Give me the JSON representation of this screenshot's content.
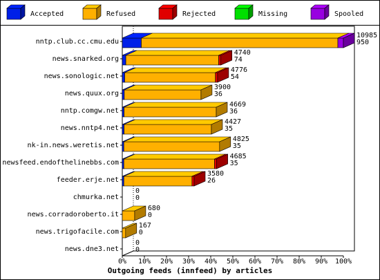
{
  "chart_data": {
    "type": "stacked-bar-3d",
    "title": "Outgoing feeds (innfeed) by articles",
    "categories": [
      "nntp.club.cc.cmu.edu",
      "news.snarked.org",
      "news.sonologic.net",
      "news.quux.org",
      "nntp.comgw.net",
      "news.nntp4.net",
      "nk-in.news.weretis.net",
      "newsfeed.endofthelinebbs.com",
      "feeder.erje.net",
      "chmurka.net",
      "news.corradoroberto.it",
      "news.trigofacile.com",
      "news.dne3.net"
    ],
    "series": [
      {
        "name": "Accepted",
        "color": "#0020e8",
        "values": [
          8.6,
          1.6,
          1.1,
          0.9,
          0.8,
          0.8,
          0.7,
          0.7,
          0.7,
          0,
          0,
          0,
          0
        ]
      },
      {
        "name": "Refused",
        "color": "#ffb000",
        "values": [
          88.9,
          42,
          41,
          34.7,
          41.7,
          39.5,
          43.3,
          41,
          30.8,
          0,
          5.6,
          1.5,
          0
        ]
      },
      {
        "name": "Rejected",
        "color": "#e00000",
        "values": [
          0,
          1,
          1,
          0,
          0,
          0,
          0,
          1,
          1,
          0,
          0,
          0,
          0
        ]
      },
      {
        "name": "Missing",
        "color": "#00e000",
        "values": [
          0,
          0,
          0,
          0,
          0,
          0,
          0,
          0,
          0,
          0,
          0,
          0,
          0
        ]
      },
      {
        "name": "Spooled",
        "color": "#9800e0",
        "values": [
          2.5,
          0,
          0,
          0,
          0,
          0,
          0,
          0,
          0,
          0,
          0,
          0,
          0
        ]
      }
    ],
    "offered_labels": [
      10985,
      4740,
      4776,
      3900,
      4669,
      4427,
      4825,
      4685,
      3580,
      0,
      680,
      167,
      0
    ],
    "accepted_labels": [
      950,
      74,
      54,
      36,
      36,
      35,
      35,
      35,
      26,
      0,
      0,
      0,
      0
    ],
    "xlim": [
      0,
      100
    ],
    "xticks": [
      {
        "value": 0,
        "label": "0%"
      },
      {
        "value": 10,
        "label": "10%"
      },
      {
        "value": 20,
        "label": "20%"
      },
      {
        "value": 30,
        "label": "30%"
      },
      {
        "value": 40,
        "label": "40%"
      },
      {
        "value": 50,
        "label": "50%"
      },
      {
        "value": 60,
        "label": "60%"
      },
      {
        "value": 70,
        "label": "70%"
      },
      {
        "value": 80,
        "label": "80%"
      },
      {
        "value": 90,
        "label": "90%"
      },
      {
        "value": 100,
        "label": "100%"
      }
    ]
  }
}
